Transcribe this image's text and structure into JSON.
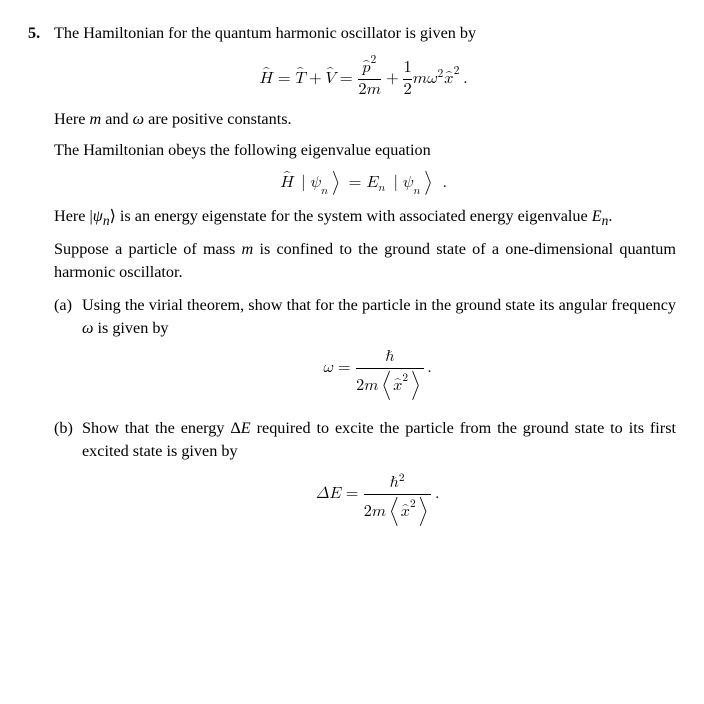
{
  "problem": {
    "number": "5.",
    "intro": "The Hamiltonian for the quantum harmonic oscillator is given by",
    "hamiltonian_eq": "Ĥ = T̂ + V̂ = p̂²/(2m) + ½ m ω² x̂².",
    "constants_note": "Here m and ω are positive constants.",
    "eigen_intro": "The Hamiltonian obeys the following eigenvalue equation",
    "eigen_eq": "Ĥ |ψₙ⟩ = Eₙ |ψₙ⟩ .",
    "eigen_explain": "Here |ψₙ⟩ is an energy eigenstate for the system with associated energy eigenvalue Eₙ.",
    "suppose": "Suppose a particle of mass m is confined to the ground state of a one-dimensional quantum harmonic oscillator.",
    "parts": {
      "a": {
        "label": "(a)",
        "text": "Using the virial theorem, show that for the particle in the ground state its angular frequency ω is given by",
        "eq": "ω = ħ / (2m⟨x̂²⟩)."
      },
      "b": {
        "label": "(b)",
        "text": "Show that the energy ΔE required to excite the particle from the ground state to its first excited state is given by",
        "eq": "ΔE = ħ² / (2m⟨x̂²⟩)."
      }
    }
  },
  "style": {
    "font_family": "Palatino",
    "body_fontsize_pt": 12,
    "math_color": "#000000",
    "background": "#ffffff",
    "text_color": "#000000"
  }
}
